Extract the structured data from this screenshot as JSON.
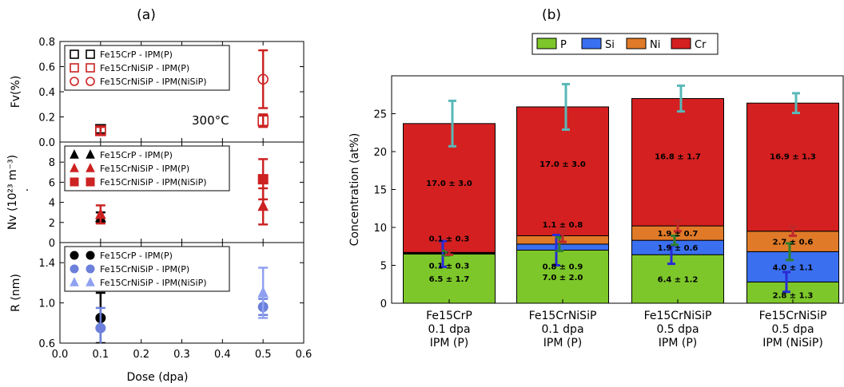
{
  "panel_a": {
    "label": "(a)",
    "annotation": "300°C",
    "xlabel": "Dose (dpa)",
    "xticks": [
      "0.0",
      "0.1",
      "0.2",
      "0.3",
      "0.4",
      "0.5",
      "0.6"
    ],
    "xlim": [
      0,
      0.6
    ]
  },
  "panel_b": {
    "label": "(b)"
  },
  "chart_data": [
    {
      "type": "scatter",
      "ylabel": "Fv(%)",
      "ylim": [
        0,
        0.8
      ],
      "yticks": [
        "0.0",
        "0.2",
        "0.4",
        "0.6",
        "0.8"
      ],
      "legend_position": "top-left",
      "series": [
        {
          "name": "Fe15CrP - IPM(P)",
          "color": "#000000",
          "marker": "open-square",
          "x": [
            0.1
          ],
          "y": [
            0.1
          ],
          "err": [
            0.03
          ]
        },
        {
          "name": "Fe15CrNiSiP - IPM(P)",
          "color": "#cc2222",
          "marker": "open-square",
          "x": [
            0.1,
            0.5
          ],
          "y": [
            0.09,
            0.17
          ],
          "err": [
            0.03,
            0.05
          ]
        },
        {
          "name": "Fe15CrNiSiP - IPM(NiSiP)",
          "color": "#cc2222",
          "marker": "open-circle",
          "x": [
            0.5
          ],
          "y": [
            0.5
          ],
          "err": [
            0.23
          ]
        }
      ]
    },
    {
      "type": "scatter",
      "ylabel": "Nv (10²³ m⁻³)",
      "ylim": [
        0,
        10
      ],
      "yticks": [
        "0",
        "2",
        "4",
        "6",
        "8"
      ],
      "legend_position": "top-left",
      "series": [
        {
          "name": "Fe15CrP - IPM(P)",
          "color": "#000000",
          "marker": "triangle",
          "x": [
            0.1
          ],
          "y": [
            2.5
          ],
          "err": [
            0.5
          ]
        },
        {
          "name": "Fe15CrNiSiP - IPM(P)",
          "color": "#cc2222",
          "marker": "triangle",
          "x": [
            0.1,
            0.5
          ],
          "y": [
            2.8,
            3.6
          ],
          "err": [
            0.9,
            1.8
          ]
        },
        {
          "name": "Fe15CrNiSiP - IPM(NiSiP)",
          "color": "#cc2222",
          "marker": "square",
          "x": [
            0.5
          ],
          "y": [
            6.3
          ],
          "err": [
            2.0
          ]
        }
      ]
    },
    {
      "type": "scatter",
      "ylabel": "R (nm)",
      "ylim": [
        0.6,
        1.6
      ],
      "yticks": [
        "0.6",
        "1.0",
        "1.4"
      ],
      "legend_position": "top-left",
      "series": [
        {
          "name": "Fe15CrP - IPM(P)",
          "color": "#000000",
          "marker": "circle",
          "x": [
            0.1
          ],
          "y": [
            0.85
          ],
          "err": [
            0.25
          ]
        },
        {
          "name": "Fe15CrNiSiP - IPM(P)",
          "color": "#6b7fdb",
          "marker": "circle",
          "x": [
            0.1,
            0.5
          ],
          "y": [
            0.75,
            0.96
          ],
          "err": [
            0.2,
            0.08
          ]
        },
        {
          "name": "Fe15CrNiSiP - IPM(NiSiP)",
          "color": "#8fa0f0",
          "marker": "triangle",
          "x": [
            0.5
          ],
          "y": [
            1.1
          ],
          "err": [
            0.25
          ]
        }
      ]
    },
    {
      "type": "bar",
      "stacked": true,
      "ylabel": "Concentration (at%)",
      "ylim": [
        0,
        30
      ],
      "yticks": [
        "0",
        "5",
        "10",
        "15",
        "20",
        "25"
      ],
      "legend_position": "top",
      "categories": [
        [
          "Fe15CrP",
          "0.1 dpa",
          "IPM (P)"
        ],
        [
          "Fe15CrNiSiP",
          "0.1 dpa",
          "IPM (P)"
        ],
        [
          "Fe15CrNiSiP",
          "0.5 dpa",
          "IPM (P)"
        ],
        [
          "Fe15CrNiSiP",
          "0.5 dpa",
          "IPM (NiSiP)"
        ]
      ],
      "series": [
        {
          "name": "P",
          "color": "#7dc72a",
          "values": [
            6.5,
            7.0,
            6.4,
            2.8
          ],
          "labels": [
            "6.5 ± 1.7",
            "7.0 ± 2.0",
            "6.4 ± 1.2",
            "2.8 ± 1.3"
          ],
          "err": [
            1.7,
            2.0,
            1.2,
            1.3
          ],
          "err_color": "#2a2ad6"
        },
        {
          "name": "Si",
          "color": "#3a6ff0",
          "values": [
            0.1,
            0.8,
            1.9,
            4.0
          ],
          "labels": [
            "0.1 ± 0.3",
            "0.8 ± 0.9",
            "1.9 ± 0.6",
            "4.0 ± 1.1"
          ],
          "err": [
            0.3,
            0.9,
            0.6,
            1.1
          ],
          "err_color": "#2f7f2f"
        },
        {
          "name": "Ni",
          "color": "#e07a28",
          "values": [
            0.1,
            1.1,
            1.9,
            2.7
          ],
          "labels": [
            "0.1 ± 0.3",
            "1.1 ± 0.8",
            "1.9 ± 0.7",
            "2.7 ± 0.6"
          ],
          "err": [
            0.3,
            0.8,
            0.7,
            0.6
          ],
          "err_color": "#c0282a"
        },
        {
          "name": "Cr",
          "color": "#d42020",
          "values": [
            17.0,
            17.0,
            16.8,
            16.9
          ],
          "labels": [
            "17.0 ± 3.0",
            "17.0 ± 3.0",
            "16.8 ± 1.7",
            "16.9 ± 1.3"
          ],
          "err": [
            3.0,
            3.0,
            1.7,
            1.3
          ],
          "err_color": "#5ab8b8"
        }
      ]
    }
  ]
}
